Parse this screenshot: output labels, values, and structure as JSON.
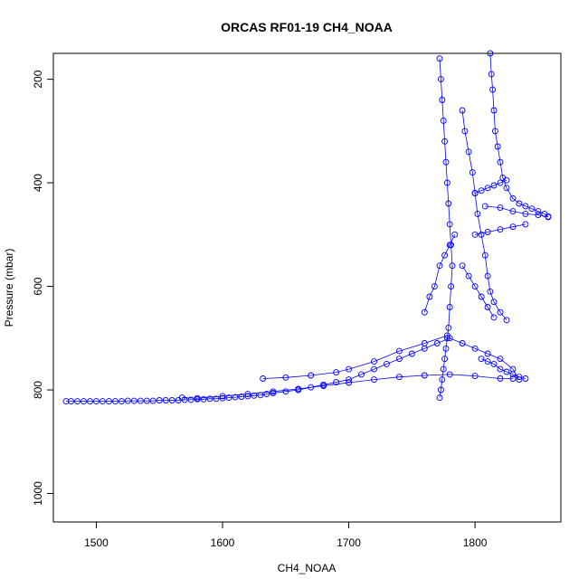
{
  "chart_data": {
    "type": "scatter",
    "title": "ORCAS RF01-19 CH4_NOAA",
    "xlabel": "CH4_NOAA",
    "ylabel": "Pressure (mbar)",
    "xlim": [
      1466,
      1868
    ],
    "ylim": [
      1055,
      150
    ],
    "y_reversed": true,
    "x_ticks": [
      1500,
      1600,
      1700,
      1800
    ],
    "y_ticks": [
      200,
      400,
      600,
      800,
      1000
    ],
    "grid": false,
    "legend": "none",
    "marker": "open-circle",
    "color": "#0000ff",
    "connected": true,
    "series": [
      {
        "x": [
          1476,
          1480,
          1485,
          1490,
          1495,
          1500,
          1505,
          1510,
          1515,
          1520,
          1525,
          1530,
          1535,
          1540,
          1545,
          1550,
          1555,
          1560,
          1565,
          1570,
          1575,
          1580,
          1585,
          1590,
          1595,
          1600,
          1605,
          1610,
          1615,
          1620,
          1625,
          1630,
          1635,
          1640,
          1650,
          1660,
          1670,
          1680,
          1690,
          1700,
          1710,
          1720,
          1730,
          1740,
          1750,
          1760,
          1770,
          1780,
          1790,
          1800,
          1810,
          1820,
          1830,
          1835
        ],
        "y": [
          822,
          822,
          822,
          822,
          822,
          822,
          822,
          822,
          822,
          822,
          821,
          821,
          821,
          821,
          821,
          820,
          820,
          820,
          820,
          819,
          819,
          818,
          818,
          817,
          817,
          816,
          815,
          814,
          813,
          812,
          811,
          810,
          808,
          806,
          803,
          800,
          795,
          790,
          785,
          780,
          770,
          760,
          750,
          740,
          730,
          720,
          710,
          700,
          710,
          720,
          730,
          740,
          760,
          780
        ]
      },
      {
        "x": [
          1568,
          1580,
          1600,
          1620,
          1640,
          1660,
          1680,
          1700,
          1720,
          1740,
          1760,
          1780,
          1800,
          1820,
          1830
        ],
        "y": [
          815,
          816,
          812,
          808,
          803,
          798,
          792,
          786,
          780,
          775,
          772,
          770,
          773,
          778,
          778
        ]
      },
      {
        "x": [
          1632,
          1650,
          1670,
          1690,
          1700,
          1720,
          1740,
          1760,
          1778
        ],
        "y": [
          778,
          776,
          772,
          766,
          760,
          745,
          725,
          710,
          695
        ]
      },
      {
        "x": [
          1772,
          1773,
          1774,
          1775,
          1776,
          1777,
          1778,
          1779,
          1780,
          1781,
          1782,
          1781,
          1780,
          1779,
          1778,
          1777,
          1776,
          1775,
          1774,
          1773,
          1772
        ],
        "y": [
          160,
          200,
          240,
          280,
          320,
          360,
          400,
          440,
          480,
          520,
          560,
          600,
          640,
          680,
          700,
          720,
          740,
          760,
          780,
          800,
          815
        ]
      },
      {
        "x": [
          1790,
          1792,
          1795,
          1798,
          1800,
          1802,
          1805,
          1808,
          1810,
          1812,
          1815,
          1820,
          1825
        ],
        "y": [
          260,
          300,
          340,
          380,
          420,
          460,
          500,
          540,
          580,
          610,
          630,
          650,
          665
        ]
      },
      {
        "x": [
          1812,
          1813,
          1814,
          1815,
          1816,
          1818,
          1820,
          1822,
          1825,
          1830,
          1835,
          1840,
          1845,
          1850,
          1855,
          1858
        ],
        "y": [
          150,
          190,
          220,
          260,
          300,
          330,
          360,
          390,
          410,
          430,
          440,
          445,
          450,
          455,
          460,
          465
        ]
      },
      {
        "x": [
          1800,
          1805,
          1810,
          1815,
          1820,
          1825
        ],
        "y": [
          420,
          415,
          410,
          405,
          400,
          395
        ]
      },
      {
        "x": [
          1808,
          1820,
          1830,
          1840,
          1850,
          1858
        ],
        "y": [
          445,
          448,
          455,
          460,
          462,
          466
        ]
      },
      {
        "x": [
          1800,
          1810,
          1820,
          1830,
          1840
        ],
        "y": [
          500,
          495,
          490,
          485,
          480
        ]
      },
      {
        "x": [
          1760,
          1764,
          1768,
          1772,
          1776,
          1780,
          1784
        ],
        "y": [
          650,
          620,
          600,
          560,
          540,
          520,
          500
        ]
      },
      {
        "x": [
          1790,
          1795,
          1800,
          1805,
          1810,
          1815
        ],
        "y": [
          560,
          580,
          600,
          620,
          640,
          660
        ]
      },
      {
        "x": [
          1805,
          1810,
          1815,
          1820,
          1825,
          1830,
          1835,
          1840
        ],
        "y": [
          740,
          745,
          750,
          760,
          765,
          770,
          775,
          778
        ]
      }
    ]
  }
}
